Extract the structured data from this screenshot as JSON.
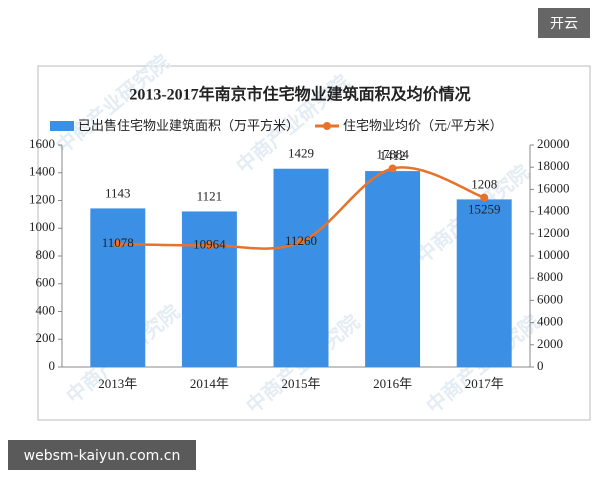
{
  "badge": "开云",
  "footer_url": "websm-kaiyun.com.cn",
  "watermark": "中商产业研究院",
  "chart_data": {
    "type": "bar-line",
    "title": "2013-2017年南京市住宅物业建筑面积及均价情况",
    "categories": [
      "2013年",
      "2014年",
      "2015年",
      "2016年",
      "2017年"
    ],
    "series": [
      {
        "name": "已出售住宅物业建筑面积（万平方米）",
        "type": "bar",
        "color": "#3b8fe4",
        "values": [
          1143,
          1121,
          1429,
          1412,
          1208
        ]
      },
      {
        "name": "住宅物业均价（元/平方米）",
        "type": "line",
        "axis": "y2",
        "color": "#e8722a",
        "values": [
          11078,
          10964,
          11260,
          17884,
          15259
        ]
      }
    ],
    "ylim": [
      0,
      1600
    ],
    "yticks": [
      0,
      200,
      400,
      600,
      800,
      1000,
      1200,
      1400,
      1600
    ],
    "y2lim": [
      0,
      20000
    ],
    "y2ticks": [
      0,
      2000,
      4000,
      6000,
      8000,
      10000,
      12000,
      14000,
      16000,
      18000,
      20000
    ]
  }
}
